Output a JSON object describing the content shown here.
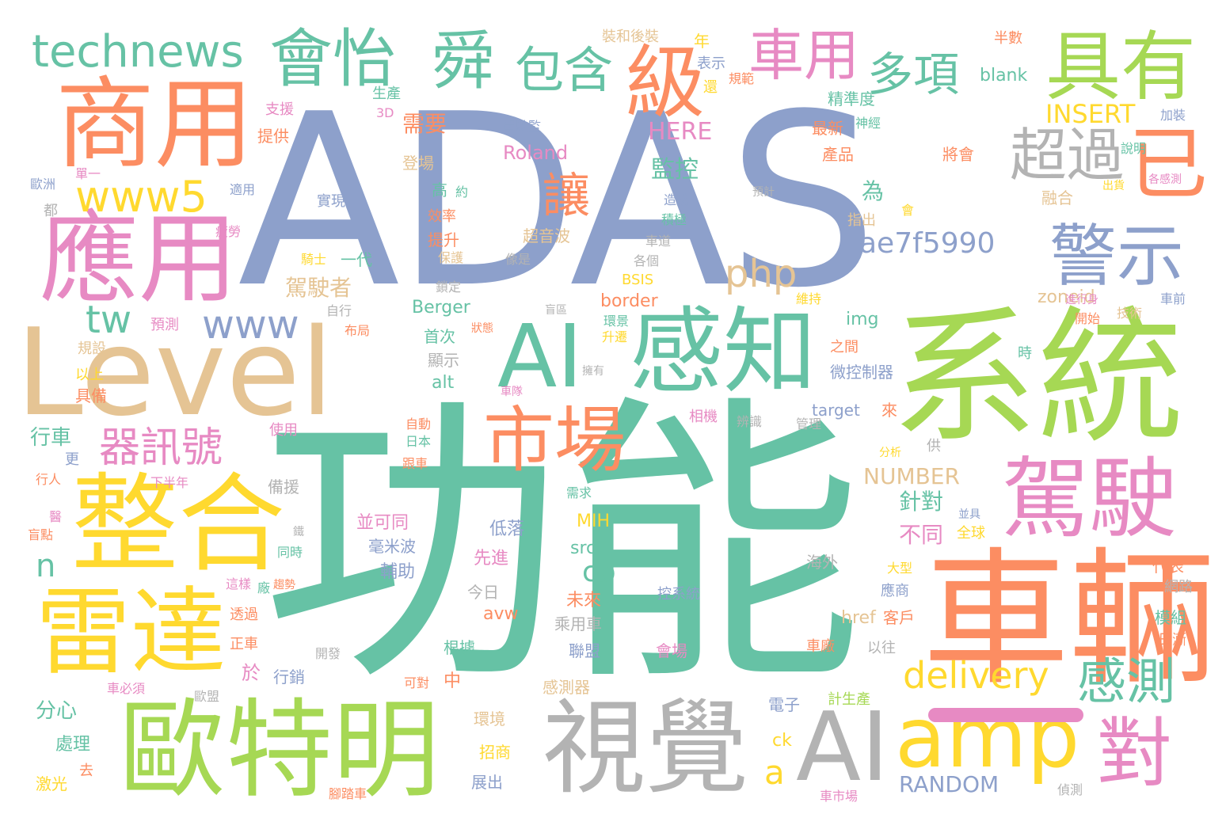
{
  "wordcloud": {
    "palette": {
      "teal": "#66c2a5",
      "orange": "#fc8d62",
      "blue": "#8da0cb",
      "pink": "#e78ac3",
      "green": "#a6d854",
      "yellow": "#ffd92f",
      "tan": "#e5c494",
      "gray": "#b3b3b3"
    },
    "words": {
      "adas": "ADAS",
      "gongneng": "功能",
      "xitong": "系統",
      "cheliang": "車輛",
      "level": "Level",
      "shangyong": "商用",
      "yingyong": "應用",
      "zhenghe": "整合",
      "leida": "雷達",
      "outeming": "歐特明",
      "shijue": "視覺",
      "ai_big": "AI",
      "amp": "amp",
      "dui": "對",
      "jiashi": "駕駛",
      "ai_ganzhi": "AI",
      "ganzhi": "感知",
      "shichang": "市場",
      "juyou": "具有",
      "jingshi": "警示",
      "chaoguo": "超過",
      "yi": "已",
      "ji": "級",
      "shun": "舜",
      "huiyi": "會怡",
      "technews": "technews",
      "baohan": "包含",
      "cheyong": "車用",
      "duoxiang": "多項",
      "www5": "www5",
      "rang": "讓",
      "qixunhao": "器訊號",
      "www": "www",
      "tw": "tw",
      "php": "php",
      "ae7f5990": "ae7f5990",
      "delivery": "delivery",
      "gance": "感測",
      "n": "n",
      "a": "a",
      "cb": "cb",
      "insert": "INSERT",
      "here": "HERE",
      "roland": "Roland",
      "jiankong": "監控",
      "wei": "為",
      "jiashizhe": "駕駛者",
      "xuyao": "需要",
      "number": "NUMBER",
      "random": "RANDOM",
      "zhendui": "針對",
      "butong": "不同",
      "berger": "Berger",
      "border": "border",
      "zoneid": "zoneid",
      "img": "img",
      "target": "target",
      "lai": "來",
      "alt": "alt",
      "src": "src",
      "mih": "MIH",
      "avw": "avw",
      "href": "href",
      "kehu": "客戶",
      "ck": "ck",
      "bsis": "BSIS",
      "blank": "blank",
      "zhuangheho": "裝和後裝",
      "nian": "年",
      "biaoshi": "表示",
      "banshu": "半數",
      "huan": "還",
      "guifan": "規範",
      "jingzhundu": "精準度",
      "shengchan": "生產",
      "zhiyuan": "支援",
      "tigong": "提供",
      "sanD": "3D",
      "jiashijian": "駕駛監",
      "shenjing": "神經",
      "zuixin": "最新",
      "jiazhuang": "加裝",
      "shuoming": "說明",
      "jiangyao": "將會",
      "chanpin": "產品",
      "gegance": "各感測",
      "ronghe": "融合",
      "zhichu": "指出",
      "hui": "會",
      "jinxingshen": "進行身",
      "chezhi": "車前",
      "jishu": "技術",
      "kaishi": "開始",
      "weichi": "維持",
      "shi": "時",
      "weikongzhiqi": "微控制器",
      "zhijian": "之間",
      "shengji": "升遷",
      "yongyou": "擁有",
      "huanjing": "環景",
      "mangqu": "盲區",
      "zhuangtai": "狀態",
      "shouci": "首次",
      "xianshi": "顯示",
      "xiangji": "相機",
      "bianshi": "辨識",
      "guanli": "管理",
      "zidong": "自動",
      "riben": "日本",
      "gencha": "跟車",
      "shiyong": "使用",
      "gong": "供",
      "fenxi": "分析",
      "xuqiu": "需求",
      "gongju": "並具",
      "xiabannian": "下半年",
      "xingren": "行人",
      "yi_med": "醫",
      "yandian": "盲點",
      "jian": "鐵",
      "tongshi": "同時",
      "zheyang": "這樣",
      "qushi": "趨勢",
      "chang": "廠",
      "tongguo": "透過",
      "zhengche": "正車",
      "chebixu": "車必須",
      "oumeng": "歐盟",
      "fenxin": "分心",
      "chuli": "處理",
      "qu": "去",
      "jiguang": "激光",
      "jiaotache": "腳踏車",
      "zhanchu": "展出",
      "zhaoshang": "招商",
      "huanjing2": "環境",
      "gancheqi": "感測器",
      "kedui": "可對",
      "zhong": "中",
      "yu": "於",
      "xingxiao": "行銷",
      "kaifa": "開發",
      "genju": "根據",
      "lianmeng": "聯盟",
      "huichang": "會場",
      "chechang": "車廠",
      "yiwang": "以往",
      "dianzi": "電子",
      "jishengchan": "計生產",
      "cheshichang": "車市場",
      "zhence": "偵測",
      "dianzi2": "電子",
      "quanqiu": "全球",
      "haiwai": "海外",
      "daxing": "大型",
      "yingshang": "應商",
      "kongzhixitong": "控系統",
      "daibiao": "代表",
      "wanglu": "網路",
      "mozu": "模組",
      "rijian": "日漸",
      "bingketong": "並可同",
      "haomibo": "毫米波",
      "fuzhu": "輔助",
      "xianjin": "先進",
      "diluo": "低落",
      "weilai": "未來",
      "jinri": "今日",
      "chengyongche": "乘用車",
      "beiyuan": "備援",
      "xingche": "行車",
      "geng": "更",
      "yishang": "以上",
      "jubei": "具備",
      "guishe": "規設",
      "yuce": "預測",
      "buju": "布局",
      "zixing": "自行",
      "suoding": "鎖定",
      "baohu": "保護",
      "xiangshi": "像是",
      "gege": "各個",
      "chedao": "車道",
      "jiji": "積極",
      "zaocheng": "造成",
      "chaoyinbo": "超音波",
      "tisheng": "提升",
      "xiaolv": "效率",
      "gao": "高",
      "yue": "約",
      "dengchang": "登場",
      "shixian": "實現",
      "shiyong2": "適用",
      "dou": "都",
      "pilao": "疲勞",
      "qishi": "騎士",
      "yidai": "一代",
      "chuhuo": "出貨",
      "yuji": "預計",
      "danyi": "單一",
      "ouzhou": "歐洲",
      "chedui": "車隊"
    }
  }
}
